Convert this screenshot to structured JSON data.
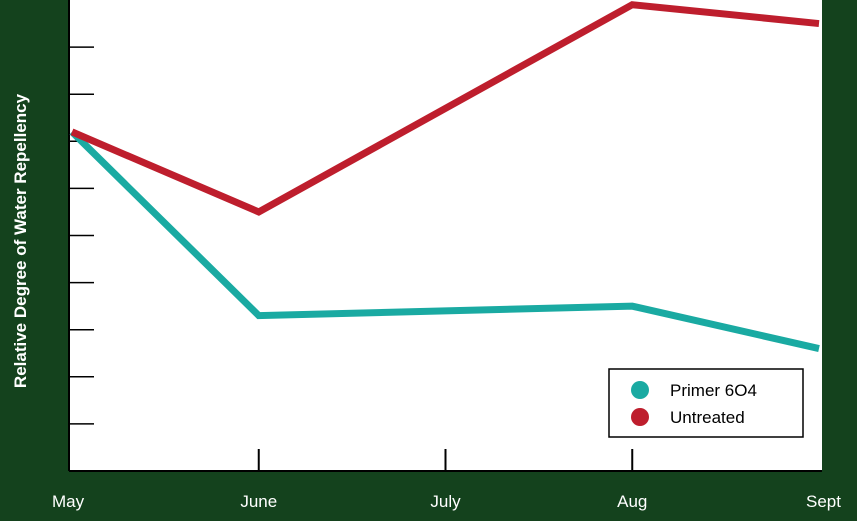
{
  "chart_data": {
    "type": "line",
    "categories": [
      "May",
      "June",
      "July",
      "Aug",
      "Sept"
    ],
    "ylabel": "Relative Degree of Water Repellency",
    "xlabel": "",
    "title": "",
    "ylim": [
      0,
      10
    ],
    "y_ticks": 9,
    "grid": false,
    "legend": "bottom-right",
    "series": [
      {
        "name": "Primer 6O4",
        "color": "#1aaaa2",
        "x": [
          "May",
          "June",
          "Aug",
          "Sept"
        ],
        "values": [
          7.2,
          3.3,
          3.5,
          2.6
        ]
      },
      {
        "name": "Untreated",
        "color": "#be1e2d",
        "x": [
          "May",
          "June",
          "Aug",
          "Sept"
        ],
        "values": [
          7.2,
          5.5,
          9.9,
          9.5
        ]
      }
    ]
  },
  "colors": {
    "background": "#14421d",
    "plot_area": "#ffffff",
    "axis": "#000000",
    "label_text": "#ffffff"
  }
}
